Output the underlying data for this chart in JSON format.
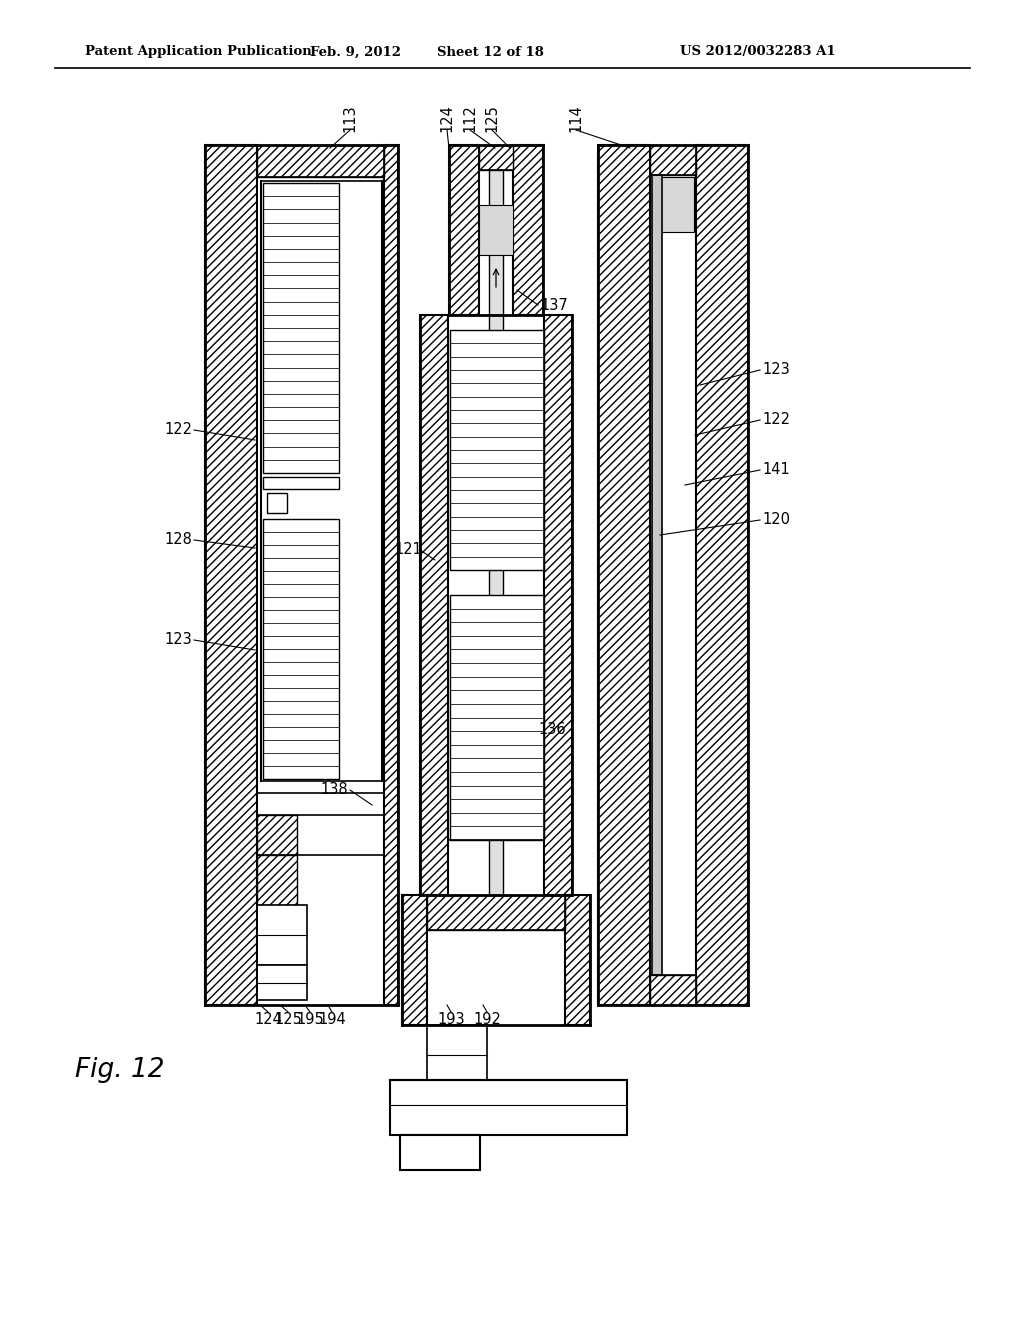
{
  "title_left": "Patent Application Publication",
  "title_center": "Feb. 9, 2012",
  "title_sheet": "Sheet 12 of 18",
  "title_patent": "US 2012/0032283 A1",
  "fig_label": "Fig. 12",
  "bg_color": "#ffffff",
  "line_color": "#000000"
}
